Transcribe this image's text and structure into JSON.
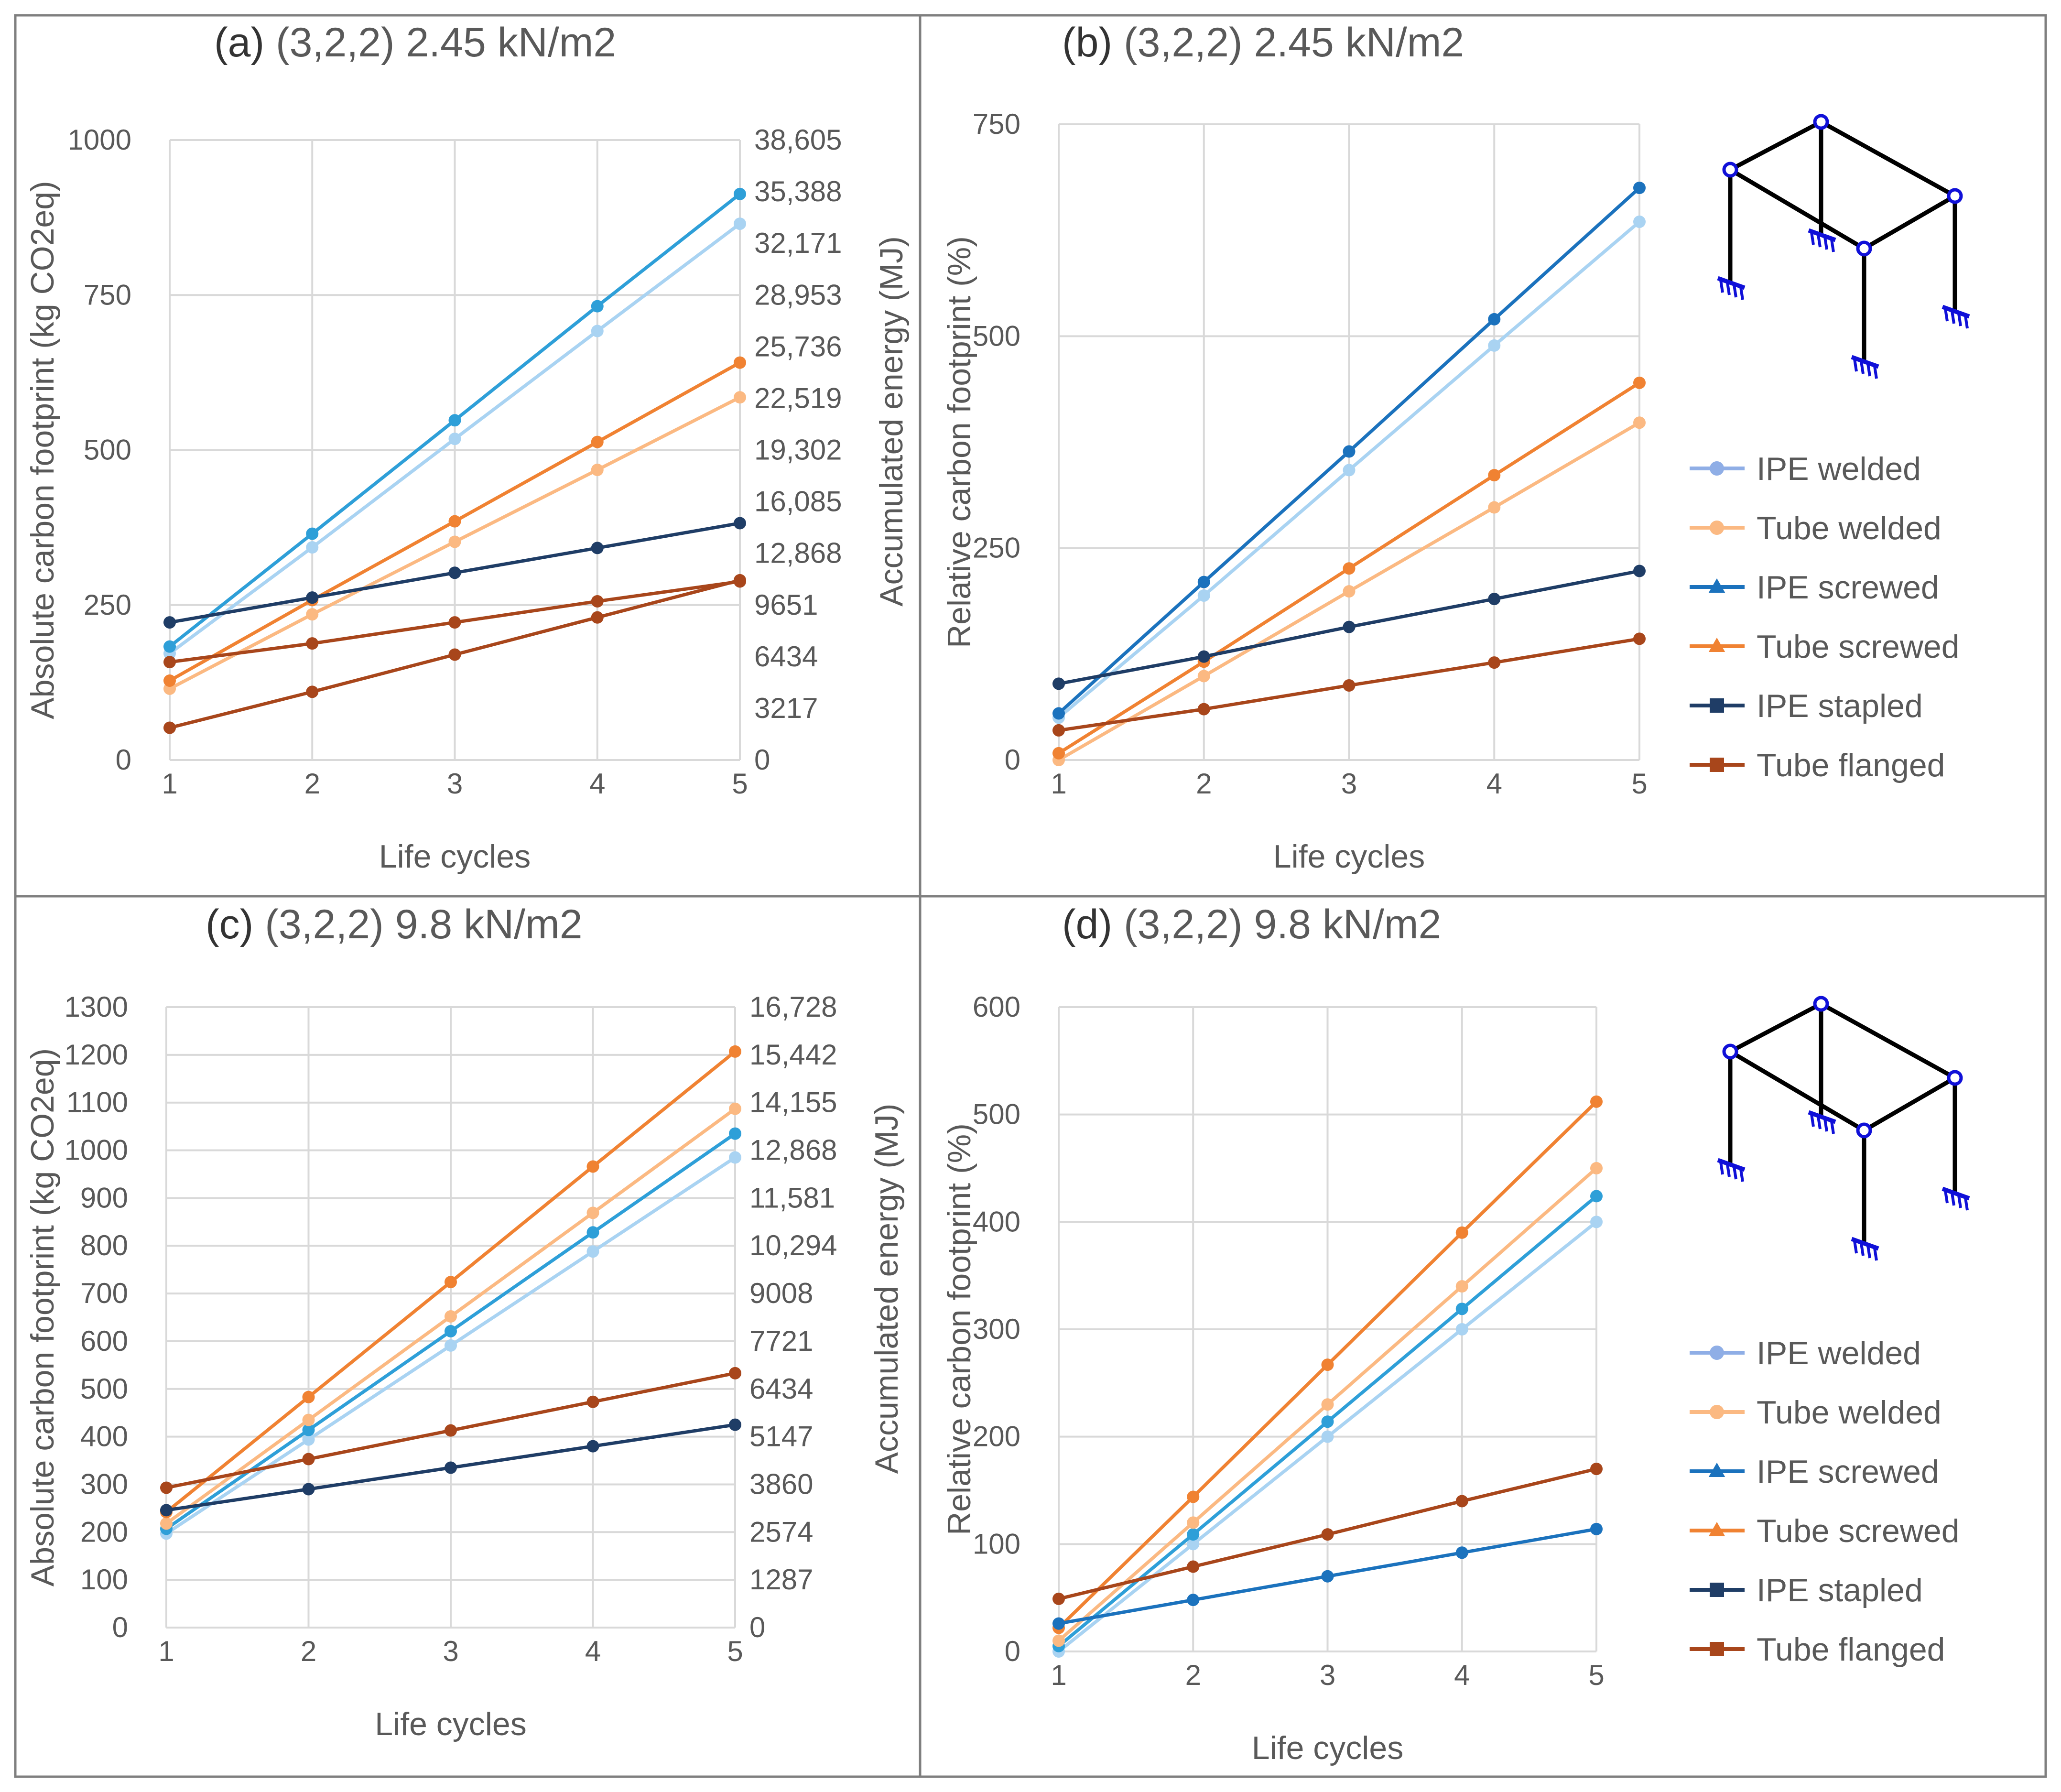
{
  "figure": {
    "colors": {
      "IPE_welded": "#a9d3f2",
      "IPE_welded_legend": "#8faee6",
      "Tube_welded": "#fbb982",
      "IPE_screwed": "#2e9fd8",
      "IPE_screwed_legend": "#1b72bd",
      "Tube_screwed": "#f08232",
      "IPE_stapled": "#1f3d66",
      "Tube_flanged": "#a8461b",
      "grid": "#d9d9d9",
      "frame": "#7f7f7f",
      "support_icon": "#1010d8"
    },
    "legend_entries": [
      {
        "label": "IPE welded",
        "marker": "circle",
        "color_key": "IPE_welded_legend"
      },
      {
        "label": "Tube welded",
        "marker": "circle",
        "color_key": "Tube_welded"
      },
      {
        "label": "IPE screwed",
        "marker": "triangle",
        "color_key": "IPE_screwed_legend"
      },
      {
        "label": "Tube screwed",
        "marker": "triangle",
        "color_key": "Tube_screwed"
      },
      {
        "label": "IPE stapled",
        "marker": "square",
        "color_key": "IPE_stapled"
      },
      {
        "label": "Tube flanged",
        "marker": "square",
        "color_key": "Tube_flanged"
      }
    ]
  },
  "chart_data": [
    {
      "id": "a",
      "type": "line",
      "panel_label": "(a)",
      "title": "(3,2,2) 2.45 kN/m2",
      "xlabel": "Life cycles",
      "ylabel": "Absolute carbon footprint (kg CO2eq)",
      "ylabel_right": "Accumulated energy (MJ)",
      "x": [
        1,
        2,
        3,
        4,
        5
      ],
      "xlim": [
        1,
        5
      ],
      "ylim": [
        0,
        1000
      ],
      "yticks": [
        0,
        250,
        500,
        750,
        1000
      ],
      "right_ticks": [
        "0",
        "3217",
        "6434",
        "9651",
        "12,868",
        "16,085",
        "19,302",
        "22,519",
        "25,736",
        "28,953",
        "32,171",
        "35,388",
        "38,605"
      ],
      "grid": true,
      "legend": "none",
      "series": [
        {
          "key": "IPE_welded",
          "marker": "circle",
          "values": [
            172,
            343,
            518,
            692,
            865
          ]
        },
        {
          "key": "IPE_screwed",
          "marker": "circle",
          "values": [
            183,
            365,
            548,
            732,
            913
          ]
        },
        {
          "key": "Tube_welded",
          "marker": "circle",
          "values": [
            115,
            235,
            352,
            468,
            585
          ]
        },
        {
          "key": "Tube_screwed",
          "marker": "circle",
          "values": [
            128,
            258,
            385,
            513,
            641
          ]
        },
        {
          "key": "IPE_stapled",
          "marker": "circle",
          "values": [
            222,
            262,
            302,
            342,
            382
          ]
        },
        {
          "key": "Tube_flanged",
          "marker": "circle",
          "values": [
            158,
            188,
            222,
            256,
            288
          ]
        },
        {
          "key": "Tube_flanged",
          "marker": "circle",
          "values": [
            52,
            110,
            170,
            230,
            290
          ]
        }
      ]
    },
    {
      "id": "b",
      "type": "line",
      "panel_label": "(b)",
      "title": "(3,2,2) 2.45 kN/m2",
      "xlabel": "Life cycles",
      "ylabel": "Relative carbon footprint (%)",
      "x": [
        1,
        2,
        3,
        4,
        5
      ],
      "xlim": [
        1,
        5
      ],
      "ylim": [
        0,
        750
      ],
      "yticks": [
        0,
        250,
        500,
        750
      ],
      "grid": true,
      "legend": "right",
      "series": [
        {
          "key": "IPE_welded",
          "marker": "circle",
          "values": [
            50,
            194,
            342,
            489,
            635
          ]
        },
        {
          "key": "IPE_screwed_legend",
          "marker": "circle",
          "values": [
            55,
            210,
            364,
            520,
            675
          ]
        },
        {
          "key": "Tube_welded",
          "marker": "circle",
          "values": [
            0,
            99,
            199,
            298,
            398
          ]
        },
        {
          "key": "Tube_screwed",
          "marker": "circle",
          "values": [
            8,
            116,
            226,
            336,
            445
          ]
        },
        {
          "key": "IPE_stapled",
          "marker": "circle",
          "values": [
            90,
            122,
            157,
            190,
            223
          ]
        },
        {
          "key": "Tube_flanged",
          "marker": "circle",
          "values": [
            35,
            60,
            88,
            115,
            143
          ]
        }
      ]
    },
    {
      "id": "c",
      "type": "line",
      "panel_label": "(c)",
      "title": "(3,2,2) 9.8 kN/m2",
      "xlabel": "Life cycles",
      "ylabel": "Absolute carbon footprint (kg CO2eq)",
      "ylabel_right": "Accumulated energy (MJ)",
      "x": [
        1,
        2,
        3,
        4,
        5
      ],
      "xlim": [
        1,
        5
      ],
      "ylim": [
        0,
        1300
      ],
      "yticks": [
        0,
        100,
        200,
        300,
        400,
        500,
        600,
        700,
        800,
        900,
        1000,
        1100,
        1200,
        1300
      ],
      "right_ticks": [
        "0",
        "1287",
        "2574",
        "3860",
        "5147",
        "6434",
        "7721",
        "9008",
        "10,294",
        "11,581",
        "12,868",
        "14,155",
        "15,442",
        "16,728"
      ],
      "grid": true,
      "legend": "none",
      "series": [
        {
          "key": "IPE_welded",
          "marker": "circle",
          "values": [
            197,
            394,
            591,
            788,
            985
          ]
        },
        {
          "key": "IPE_screwed",
          "marker": "circle",
          "values": [
            207,
            414,
            621,
            828,
            1035
          ]
        },
        {
          "key": "Tube_welded",
          "marker": "circle",
          "values": [
            218,
            435,
            652,
            869,
            1087
          ]
        },
        {
          "key": "Tube_screwed",
          "marker": "circle",
          "values": [
            242,
            483,
            724,
            966,
            1207
          ]
        },
        {
          "key": "Tube_flanged",
          "marker": "circle",
          "values": [
            293,
            353,
            413,
            473,
            533
          ]
        },
        {
          "key": "IPE_stapled",
          "marker": "circle",
          "values": [
            246,
            290,
            335,
            380,
            425
          ]
        }
      ]
    },
    {
      "id": "d",
      "type": "line",
      "panel_label": "(d)",
      "title": "(3,2,2) 9.8 kN/m2",
      "xlabel": "Life cycles",
      "ylabel": "Relative carbon footprint (%)",
      "x": [
        1,
        2,
        3,
        4,
        5
      ],
      "xlim": [
        1,
        5
      ],
      "ylim": [
        0,
        600
      ],
      "yticks": [
        0,
        100,
        200,
        300,
        400,
        500,
        600
      ],
      "grid": true,
      "legend": "right",
      "series": [
        {
          "key": "IPE_welded",
          "marker": "circle",
          "values": [
            0,
            100,
            200,
            300,
            400
          ]
        },
        {
          "key": "IPE_screwed",
          "marker": "circle",
          "values": [
            5,
            109,
            214,
            319,
            424
          ]
        },
        {
          "key": "Tube_welded",
          "marker": "circle",
          "values": [
            10,
            120,
            230,
            340,
            450
          ]
        },
        {
          "key": "Tube_screwed",
          "marker": "circle",
          "values": [
            22,
            144,
            267,
            390,
            512
          ]
        },
        {
          "key": "Tube_flanged",
          "marker": "circle",
          "values": [
            49,
            79,
            109,
            140,
            170
          ]
        },
        {
          "key": "IPE_screwed_legend",
          "marker": "circle",
          "values": [
            26,
            48,
            70,
            92,
            114
          ]
        }
      ]
    }
  ]
}
